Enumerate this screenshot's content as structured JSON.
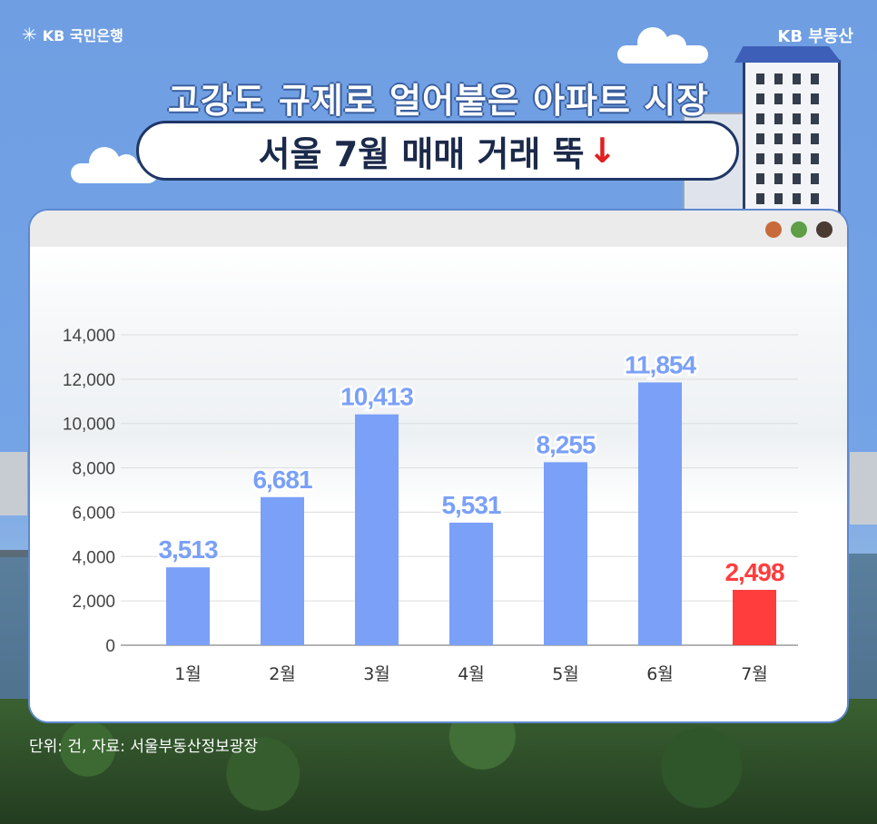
{
  "header": {
    "logo_text": "KB 국민은행",
    "brand": "KB 부동산",
    "title_line1": "고강도 규제로 얼어붙은 아파트 시장",
    "title_line2": "서울 7월 매매 거래 뚝",
    "title_arrow": "↓"
  },
  "window_dots": [
    "#c96a3a",
    "#5e9e46",
    "#4a3a32"
  ],
  "source_note": "단위: 건, 자료: 서울부동산정보광장",
  "colors": {
    "bar": "#7aa0f8",
    "highlight": "#ff3d3d",
    "label": "#7aa0f8"
  },
  "chart_data": {
    "type": "bar",
    "title": "서울 7월 매매 거래 뚝",
    "categories": [
      "1월",
      "2월",
      "3월",
      "4월",
      "5월",
      "6월",
      "7월"
    ],
    "values": [
      3513,
      6681,
      10413,
      5531,
      8255,
      11854,
      2498
    ],
    "value_labels": [
      "3,513",
      "6,681",
      "10,413",
      "5,531",
      "8,255",
      "11,854",
      "2,498"
    ],
    "highlight_index": 6,
    "ylim": [
      0,
      14000
    ],
    "yticks": [
      0,
      2000,
      4000,
      6000,
      8000,
      10000,
      12000,
      14000
    ],
    "ytick_labels": [
      "0",
      "2,000",
      "4,000",
      "6,000",
      "8,000",
      "10,000",
      "12,000",
      "14,000"
    ],
    "grid": true,
    "xlabel": "",
    "ylabel": ""
  }
}
